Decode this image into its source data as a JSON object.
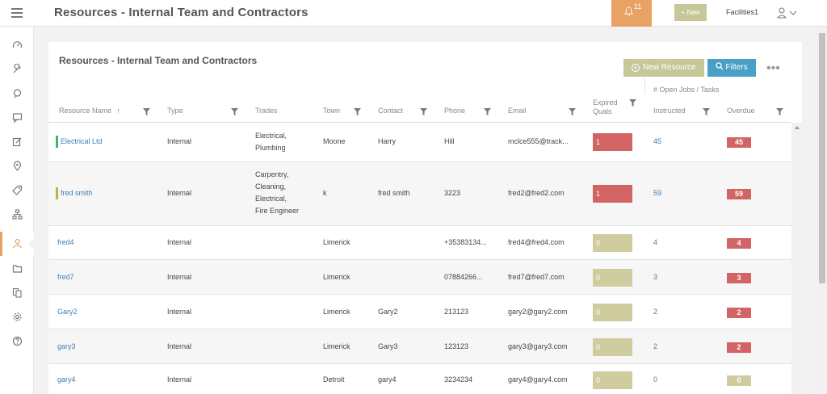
{
  "app": {
    "title": "Resources - Internal Team and Contractors"
  },
  "topbar": {
    "notification_count": "11",
    "new_label": "+ New",
    "account_name": "Facilities1"
  },
  "sidebar": {
    "items": [
      {
        "icon": "dashboard-icon"
      },
      {
        "icon": "wrench-icon"
      },
      {
        "icon": "chat-bubble-icon"
      },
      {
        "icon": "message-icon"
      },
      {
        "icon": "edit-icon"
      },
      {
        "icon": "location-pin-icon"
      },
      {
        "icon": "tag-icon"
      },
      {
        "icon": "sitemap-icon"
      },
      {
        "icon": "resources-icon",
        "active": true
      },
      {
        "icon": "folder-icon"
      },
      {
        "icon": "documents-icon"
      },
      {
        "icon": "settings-icon"
      },
      {
        "icon": "help-icon"
      }
    ]
  },
  "panel": {
    "title": "Resources - Internal Team and Contractors",
    "new_resource_label": "New Resource",
    "filters_label": "Filters",
    "open_jobs_label": "# Open Jobs / Tasks"
  },
  "table": {
    "columns": {
      "name": "Resource Name",
      "sort_arrow": "↑",
      "type": "Type",
      "trades": "Trades",
      "town": "Town",
      "contact": "Contact",
      "phone": "Phone",
      "email": "Email",
      "expired_quals_1": "Expired",
      "expired_quals_2": "Quals",
      "instructed": "Instructed",
      "overdue": "Overdue"
    },
    "rows": [
      {
        "name": "Electrical Ltd",
        "marker_color": "#3cb371",
        "type": "Internal",
        "trades": [
          "Electrical,",
          "Plumbing"
        ],
        "town": "Moone",
        "contact": "Harry",
        "phone": "Hill",
        "email": "mclce555@track...",
        "expired": "1",
        "expired_color": "#d26463",
        "instructed": "45",
        "overdue": "45",
        "overdue_color": "#d26463"
      },
      {
        "name": "fred smith",
        "marker_color": "#b5b83a",
        "type": "Internal",
        "trades": [
          "Carpentry,",
          "Cleaning,",
          "Electrical,",
          "Fire Engineer"
        ],
        "town": "k",
        "contact": "fred smith",
        "phone": "3223",
        "email": "fred2@fred2.com",
        "expired": "1",
        "expired_color": "#d26463",
        "instructed": "59",
        "overdue": "59",
        "overdue_color": "#d26463"
      },
      {
        "name": "fred4",
        "marker_color": "",
        "type": "Internal",
        "trades": [],
        "town": "Limerick",
        "contact": "",
        "phone": "+35383134...",
        "email": "fred4@fred4.com",
        "expired": "0",
        "expired_color": "#cfcca0",
        "instructed": "4",
        "overdue": "4",
        "overdue_color": "#d26463"
      },
      {
        "name": "fred7",
        "marker_color": "",
        "type": "Internal",
        "trades": [],
        "town": "Limerick",
        "contact": "",
        "phone": "07884266...",
        "email": "fred7@fred7.com",
        "expired": "0",
        "expired_color": "#cfcca0",
        "instructed": "3",
        "overdue": "3",
        "overdue_color": "#d26463"
      },
      {
        "name": "Gary2",
        "marker_color": "",
        "type": "Internal",
        "trades": [],
        "town": "Limerick",
        "contact": "Gary2",
        "phone": "213123",
        "email": "gary2@gary2.com",
        "expired": "0",
        "expired_color": "#cfcca0",
        "instructed": "2",
        "overdue": "2",
        "overdue_color": "#d26463"
      },
      {
        "name": "gary3",
        "marker_color": "",
        "type": "Internal",
        "trades": [],
        "town": "Limerick",
        "contact": "Gary3",
        "phone": "123123",
        "email": "gary3@gary3.com",
        "expired": "0",
        "expired_color": "#cfcca0",
        "instructed": "2",
        "overdue": "2",
        "overdue_color": "#d26463"
      },
      {
        "name": "gary4",
        "marker_color": "",
        "type": "Internal",
        "trades": [],
        "town": "Detroit",
        "contact": "gary4",
        "phone": "3234234",
        "email": "gary4@gary4.com",
        "expired": "0",
        "expired_color": "#cfcca0",
        "instructed": "0",
        "overdue": "0",
        "overdue_color": "#cfcca0"
      }
    ]
  },
  "colors": {
    "accent_orange": "#e8a364",
    "olive": "#c8c79a",
    "blue": "#4a9fc6",
    "danger": "#d26463"
  }
}
